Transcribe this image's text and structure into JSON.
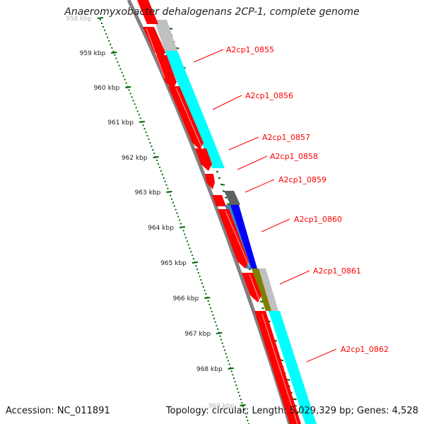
{
  "title": "Anaeromyxobacter dehalogenans 2CP-1, complete genome",
  "footer": {
    "accession": "Accession: NC_011891",
    "summary": "Topology: circular; Length: 5,029,329 bp; Genes: 4,528"
  },
  "ruler": {
    "labels": [
      "958 kbp",
      "959 kbp",
      "960 kbp",
      "961 kbp",
      "962 kbp",
      "963 kbp",
      "964 kbp",
      "965 kbp",
      "966 kbp",
      "967 kbp",
      "968 kbp",
      "969 kbp"
    ]
  },
  "genes": [
    {
      "name": "A2cp1_0855"
    },
    {
      "name": "A2cp1_0856"
    },
    {
      "name": "A2cp1_0857"
    },
    {
      "name": "A2cp1_0858"
    },
    {
      "name": "A2cp1_0859"
    },
    {
      "name": "A2cp1_0860"
    },
    {
      "name": "A2cp1_0861"
    },
    {
      "name": "A2cp1_0862"
    }
  ],
  "colors": {
    "cds": "#ff0000",
    "cyan": "#00ffff",
    "blue": "#0000ff",
    "steel": "#4682b4",
    "olive": "#808000",
    "light_gray": "#c0c0c0",
    "dark_gray": "#606060",
    "backbone": "#808080",
    "tick_green": "#006400",
    "label_red": "#ff0000"
  }
}
